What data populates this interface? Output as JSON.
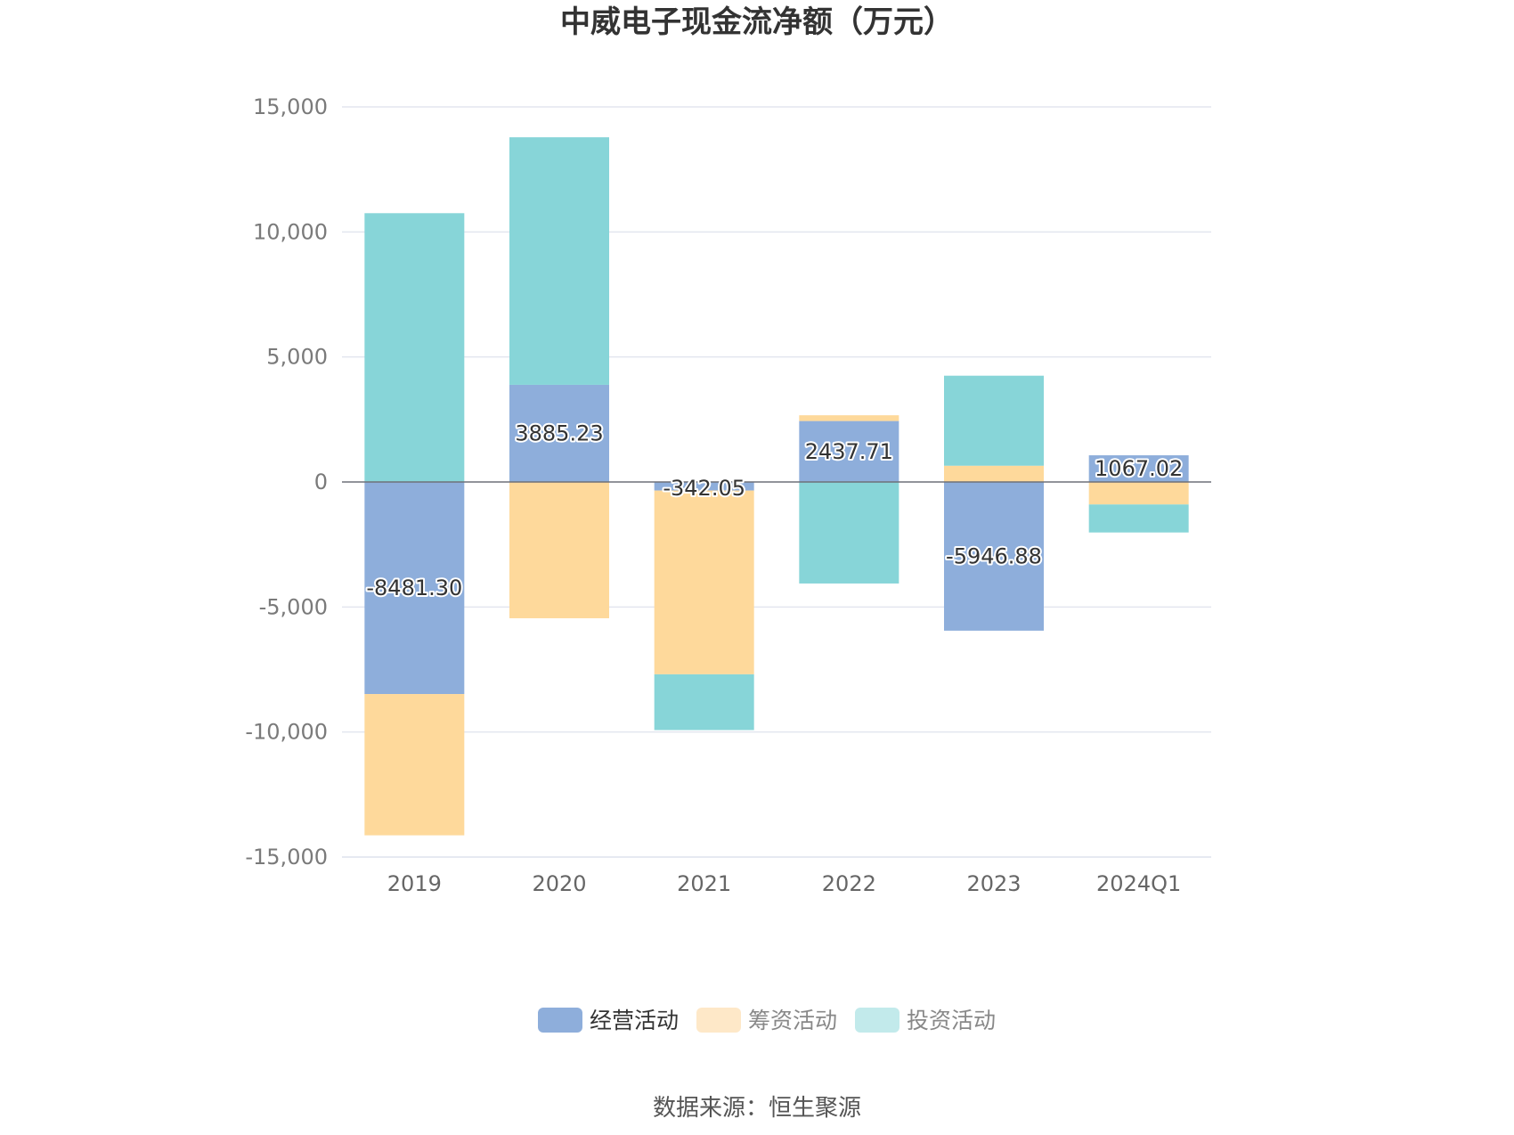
{
  "chart_data": {
    "type": "bar",
    "stacked": true,
    "title": "中威电子现金流净额（万元）",
    "categories": [
      "2019",
      "2020",
      "2021",
      "2022",
      "2023",
      "2024Q1"
    ],
    "ylim": [
      -15000,
      15000
    ],
    "yticks": [
      15000,
      10000,
      5000,
      0,
      -5000,
      -10000,
      -15000
    ],
    "ytick_labels": [
      "15,000",
      "10,000",
      "5,000",
      "0",
      "-5,000",
      "-10,000",
      "-15,000"
    ],
    "grid": true,
    "legend_position": "bottom",
    "series": [
      {
        "name": "经营活动",
        "color": "#8eaedb",
        "values": [
          -8481.3,
          3885.23,
          -342.05,
          2437.71,
          -5946.88,
          1067.02
        ],
        "labels": [
          "-8481.30",
          "3885.23",
          "-342.05",
          "2437.71",
          "-5946.88",
          "1067.02"
        ]
      },
      {
        "name": "筹资活动",
        "color": "#fed99b",
        "values": [
          -5650,
          -5450,
          -7350,
          230,
          650,
          -900
        ]
      },
      {
        "name": "投资活动",
        "color": "#87d5d8",
        "values": [
          10750,
          9900,
          -2230,
          -4060,
          3600,
          -1120
        ]
      }
    ],
    "legend_colors": [
      "#8eaedb",
      "#fee8c8",
      "#c2eaeb"
    ]
  },
  "source": "数据来源：恒生聚源"
}
